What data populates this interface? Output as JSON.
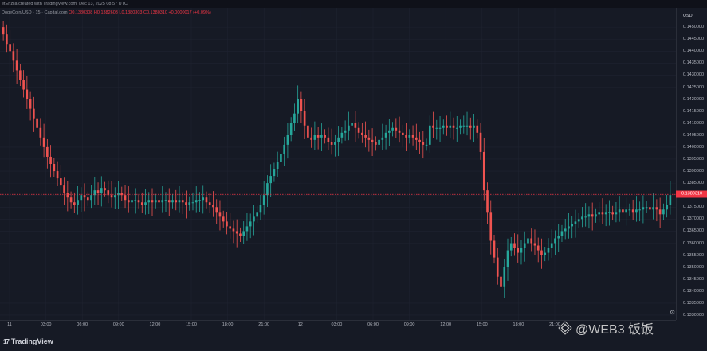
{
  "header": {
    "caption": "etEnzila created with TradingView.com, Dec 13, 2025 08:57 UTC"
  },
  "legend": {
    "symbol": "DogeCoin/USD · 15 · Capital.com",
    "ohlc": "O0.1380308 H0.1382603 L0.1380303 C0.1380310 +0.0000017 (+0.09%)"
  },
  "currency": "USD",
  "current_price": "0.1380310",
  "colors": {
    "background": "#161a25",
    "up": "#26a69a",
    "down": "#ef5350",
    "price_line": "#f23645"
  },
  "price_ticks": [
    "0.1450000",
    "0.1445000",
    "0.1440000",
    "0.1435000",
    "0.1430000",
    "0.1425000",
    "0.1420000",
    "0.1415000",
    "0.1410000",
    "0.1405000",
    "0.1400000",
    "0.1395000",
    "0.1390000",
    "0.1385000",
    "0.1380000",
    "0.1375000",
    "0.1370000",
    "0.1365000",
    "0.1360000",
    "0.1355000",
    "0.1350000",
    "0.1345000",
    "0.1340000",
    "0.1335000",
    "0.1330000"
  ],
  "time_ticks": [
    "11",
    "03:00",
    "06:00",
    "09:00",
    "12:00",
    "15:00",
    "18:00",
    "21:00",
    "12",
    "03:00",
    "06:00",
    "09:00",
    "12:00",
    "15:00",
    "18:00",
    "21:00"
  ],
  "footer": {
    "logo_text": "TradingView"
  },
  "watermark": {
    "text": "@WEB3 饭饭"
  },
  "chart_data": {
    "type": "candlestick",
    "symbol": "DogeCoin/USD",
    "interval": "15",
    "ylim": [
      0.1328,
      0.1458
    ],
    "series": [
      {
        "name": "DogeCoin/USD",
        "closes": [
          0.1447,
          0.1443,
          0.144,
          0.1436,
          0.1432,
          0.1428,
          0.1424,
          0.142,
          0.1416,
          0.1412,
          0.1408,
          0.1404,
          0.14,
          0.1396,
          0.1393,
          0.139,
          0.1387,
          0.1384,
          0.1381,
          0.1379,
          0.1377,
          0.1376,
          0.1378,
          0.138,
          0.1379,
          0.1378,
          0.138,
          0.1382,
          0.1381,
          0.1383,
          0.1382,
          0.138,
          0.1379,
          0.138,
          0.1381,
          0.138,
          0.1378,
          0.1377,
          0.1378,
          0.1378,
          0.1377,
          0.1376,
          0.1377,
          0.1378,
          0.1377,
          0.1378,
          0.1377,
          0.1378,
          0.1378,
          0.1377,
          0.1378,
          0.1377,
          0.1378,
          0.1377,
          0.1376,
          0.1377,
          0.1377,
          0.1378,
          0.1378,
          0.1379,
          0.1377,
          0.1376,
          0.1375,
          0.1373,
          0.1371,
          0.1369,
          0.1367,
          0.1366,
          0.1365,
          0.1364,
          0.1363,
          0.1365,
          0.1367,
          0.1369,
          0.1371,
          0.1373,
          0.1376,
          0.138,
          0.1385,
          0.1388,
          0.1391,
          0.1394,
          0.1397,
          0.1401,
          0.1405,
          0.141,
          0.1414,
          0.142,
          0.1415,
          0.1409,
          0.1404,
          0.1403,
          0.1405,
          0.1404,
          0.1405,
          0.1404,
          0.1402,
          0.1401,
          0.1402,
          0.1404,
          0.1406,
          0.1407,
          0.1409,
          0.141,
          0.1408,
          0.1406,
          0.1405,
          0.1404,
          0.1403,
          0.1402,
          0.1401,
          0.1403,
          0.1404,
          0.1406,
          0.1407,
          0.1408,
          0.1407,
          0.1406,
          0.1405,
          0.1404,
          0.1405,
          0.1404,
          0.1403,
          0.1402,
          0.1401,
          0.1401,
          0.1409,
          0.1408,
          0.1408,
          0.1408,
          0.1409,
          0.1408,
          0.1409,
          0.1408,
          0.1408,
          0.1409,
          0.1409,
          0.1409,
          0.1408,
          0.1409,
          0.1406,
          0.1398,
          0.1382,
          0.1373,
          0.1361,
          0.1354,
          0.1346,
          0.1342,
          0.135,
          0.1357,
          0.136,
          0.1358,
          0.1356,
          0.1358,
          0.136,
          0.1362,
          0.136,
          0.1359,
          0.1357,
          0.1355,
          0.1356,
          0.1358,
          0.136,
          0.1362,
          0.1363,
          0.1365,
          0.1366,
          0.1367,
          0.1368,
          0.1369,
          0.137,
          0.1371,
          0.1371,
          0.1372,
          0.1371,
          0.1372,
          0.1373,
          0.1372,
          0.1373,
          0.1373,
          0.1372,
          0.1373,
          0.1374,
          0.1373,
          0.1374,
          0.1374,
          0.1373,
          0.1374,
          0.1374,
          0.1375,
          0.1375,
          0.1374,
          0.1375,
          0.1374,
          0.1372,
          0.1374,
          0.1376,
          0.138
        ]
      }
    ]
  }
}
